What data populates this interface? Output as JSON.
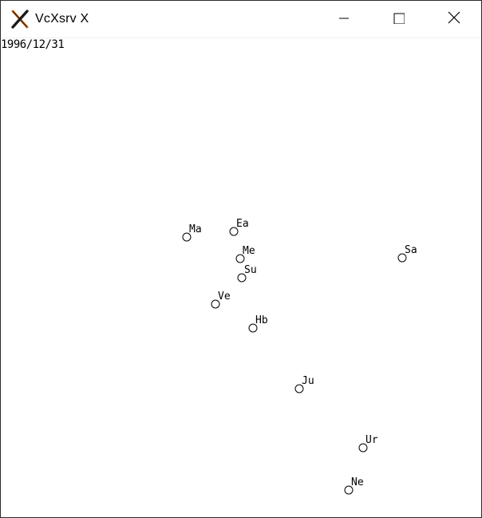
{
  "window": {
    "title": "VcXsrv X",
    "app_icon": "x-logo-icon",
    "controls": [
      "minimize-icon",
      "maximize-icon",
      "close-icon"
    ]
  },
  "display": {
    "date": "1996/12/31"
  },
  "bodies": [
    {
      "label": "Ma"
    },
    {
      "label": "Ea"
    },
    {
      "label": "Me"
    },
    {
      "label": "Su"
    },
    {
      "label": "Ve"
    },
    {
      "label": "Hb"
    },
    {
      "label": "Sa"
    },
    {
      "label": "Ju"
    },
    {
      "label": "Ur"
    },
    {
      "label": "Ne"
    }
  ]
}
